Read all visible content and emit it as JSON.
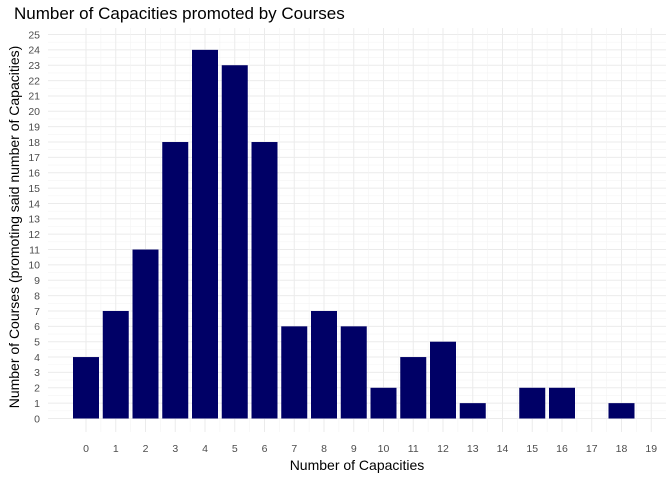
{
  "chart_data": {
    "type": "bar",
    "title": "Number of Capacities promoted by Courses",
    "xlabel": "Number of Capacities",
    "ylabel": "Number of Courses (promoting said number of Capacities)",
    "categories": [
      "0",
      "1",
      "2",
      "3",
      "4",
      "5",
      "6",
      "7",
      "8",
      "9",
      "10",
      "11",
      "12",
      "13",
      "14",
      "15",
      "16",
      "17",
      "18",
      "19"
    ],
    "values": [
      4,
      7,
      11,
      18,
      24,
      23,
      18,
      6,
      7,
      6,
      2,
      4,
      5,
      1,
      0,
      2,
      2,
      0,
      1,
      0
    ],
    "ylim": [
      0,
      25
    ],
    "yticks": [
      0,
      1,
      2,
      3,
      4,
      5,
      6,
      7,
      8,
      9,
      10,
      11,
      12,
      13,
      14,
      15,
      16,
      17,
      18,
      19,
      20,
      21,
      22,
      23,
      24,
      25
    ],
    "grid": true,
    "colors": {
      "bar": "#000066",
      "grid_major": "#ebebeb",
      "grid_minor": "#f4f4f4"
    }
  }
}
